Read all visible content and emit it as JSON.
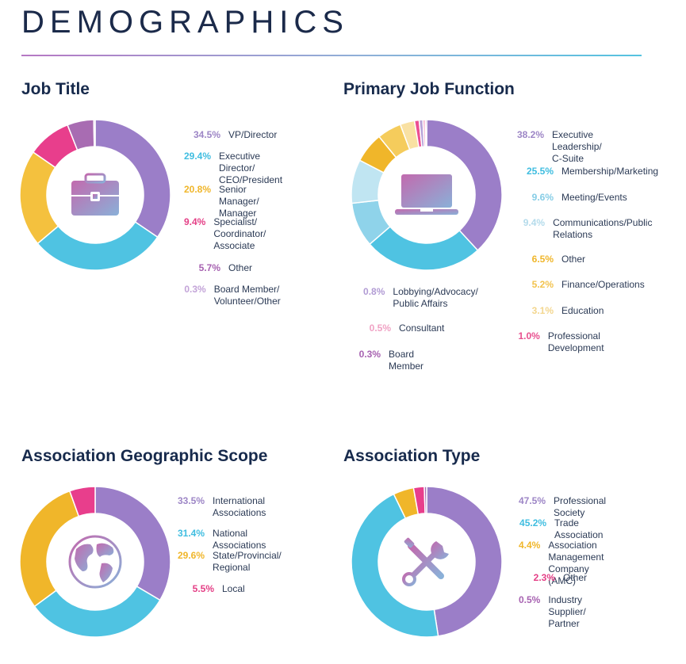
{
  "page_title": "DEMOGRAPHICS",
  "chart_data": [
    {
      "type": "pie",
      "title": "Job Title",
      "icon": "briefcase-icon",
      "slices": [
        {
          "label": "VP/Director",
          "pct_text": "34.5%",
          "value": 34.5,
          "color": "#9b7ec8",
          "pct_color": "#9d86c6"
        },
        {
          "label": "Executive Director/ CEO/President",
          "pct_text": "29.4%",
          "value": 29.4,
          "color": "#4fc3e2",
          "pct_color": "#3fbde0"
        },
        {
          "label": "Senior Manager/ Manager",
          "pct_text": "20.8%",
          "value": 20.8,
          "color": "#f4c13e",
          "pct_color": "#f0b62a"
        },
        {
          "label": "Specialist/ Coordinator/ Associate",
          "pct_text": "9.4%",
          "value": 9.4,
          "color": "#e83e8c",
          "pct_color": "#e43f86"
        },
        {
          "label": "Other",
          "pct_text": "5.7%",
          "value": 5.7,
          "color": "#a86cb2",
          "pct_color": "#a762b1"
        },
        {
          "label": "Board Member/ Volunteer/Other",
          "pct_text": "0.3%",
          "value": 0.3,
          "color": "#c6a9dc",
          "pct_color": "#c3a4d8"
        }
      ]
    },
    {
      "type": "pie",
      "title": "Primary Job Function",
      "icon": "laptop-icon",
      "slices": [
        {
          "label": "Executive Leadership/ C-Suite",
          "pct_text": "38.2%",
          "value": 38.2,
          "color": "#9b7ec8",
          "pct_color": "#9d86c6"
        },
        {
          "label": "Membership/Marketing",
          "pct_text": "25.5%",
          "value": 25.5,
          "color": "#4fc3e2",
          "pct_color": "#3fbde0"
        },
        {
          "label": "Meeting/Events",
          "pct_text": "9.6%",
          "value": 9.6,
          "color": "#8fd3ea",
          "pct_color": "#86cde6"
        },
        {
          "label": "Communications/Public Relations",
          "pct_text": "9.4%",
          "value": 9.4,
          "color": "#c0e5f2",
          "pct_color": "#b4dbeb"
        },
        {
          "label": "Other",
          "pct_text": "6.5%",
          "value": 6.5,
          "color": "#f0b62a",
          "pct_color": "#f0b62a"
        },
        {
          "label": "Finance/Operations",
          "pct_text": "5.2%",
          "value": 5.2,
          "color": "#f5cc5c",
          "pct_color": "#f2c34f"
        },
        {
          "label": "Education",
          "pct_text": "3.1%",
          "value": 3.1,
          "color": "#f9e1a3",
          "pct_color": "#f3d68e"
        },
        {
          "label": "Professional Development",
          "pct_text": "1.0%",
          "value": 1.0,
          "color": "#ec4f92",
          "pct_color": "#e8508f"
        },
        {
          "label": "Lobbying/Advocacy/ Public Affairs",
          "pct_text": "0.8%",
          "value": 0.8,
          "color": "#b8a2d8",
          "pct_color": "#b19bd4"
        },
        {
          "label": "Consultant",
          "pct_text": "0.5%",
          "value": 0.5,
          "color": "#f4a6c8",
          "pct_color": "#f0a2c4"
        },
        {
          "label": "Board Member",
          "pct_text": "0.3%",
          "value": 0.3,
          "color": "#a86cb2",
          "pct_color": "#a762b1"
        }
      ]
    },
    {
      "type": "pie",
      "title": "Association Geographic Scope",
      "icon": "globe-icon",
      "slices": [
        {
          "label": "International Associations",
          "pct_text": "33.5%",
          "value": 33.5,
          "color": "#9b7ec8",
          "pct_color": "#9d86c6"
        },
        {
          "label": "National Associations",
          "pct_text": "31.4%",
          "value": 31.4,
          "color": "#4fc3e2",
          "pct_color": "#3fbde0"
        },
        {
          "label": "State/Provincial/ Regional",
          "pct_text": "29.6%",
          "value": 29.6,
          "color": "#f0b62a",
          "pct_color": "#f0b62a"
        },
        {
          "label": "Local",
          "pct_text": "5.5%",
          "value": 5.5,
          "color": "#e83e8c",
          "pct_color": "#e43f86"
        }
      ]
    },
    {
      "type": "pie",
      "title": "Association Type",
      "icon": "tools-icon",
      "slices": [
        {
          "label": "Professional Society",
          "pct_text": "47.5%",
          "value": 47.5,
          "color": "#9b7ec8",
          "pct_color": "#9d86c6"
        },
        {
          "label": "Trade Association",
          "pct_text": "45.2%",
          "value": 45.2,
          "color": "#4fc3e2",
          "pct_color": "#3fbde0"
        },
        {
          "label": "Association Management Company (AMC)",
          "pct_text": "4.4%",
          "value": 4.4,
          "color": "#f0b62a",
          "pct_color": "#f0b62a"
        },
        {
          "label": "Other",
          "pct_text": "2.3%",
          "value": 2.3,
          "color": "#e83e8c",
          "pct_color": "#e43f86"
        },
        {
          "label": "Industry Supplier/ Partner",
          "pct_text": "0.5%",
          "value": 0.5,
          "color": "#a86cb2",
          "pct_color": "#a762b1"
        }
      ]
    }
  ]
}
